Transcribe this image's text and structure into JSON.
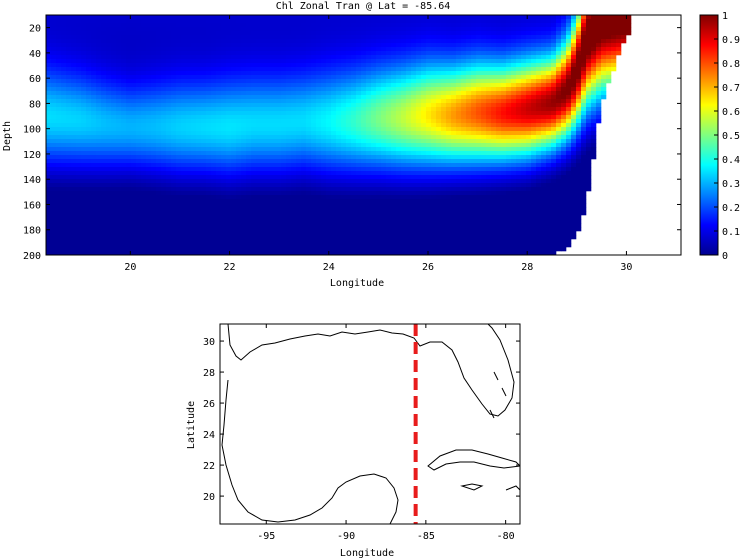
{
  "chart_data": [
    {
      "type": "heatmap",
      "title": "Chl Zonal Tran @ Lat = -85.64",
      "xlabel": "Longitude",
      "ylabel": "Depth",
      "xlim": [
        18.3,
        31.1
      ],
      "ylim": [
        200,
        10
      ],
      "xticks": [
        20,
        22,
        24,
        26,
        28,
        30
      ],
      "yticks": [
        20,
        40,
        60,
        80,
        100,
        120,
        140,
        160,
        180,
        200
      ],
      "colorbar": {
        "range": [
          0,
          1
        ],
        "ticks": [
          "0",
          "0.1",
          "0.2",
          "0.3",
          "0.4",
          "0.5",
          "0.6",
          "0.7",
          "0.8",
          "0.9",
          "1"
        ],
        "colormap": "jet"
      },
      "x": [
        18.3,
        19.0,
        19.5,
        20.0,
        20.5,
        21.0,
        21.5,
        22.0,
        22.5,
        23.0,
        23.5,
        24.0,
        24.5,
        25.0,
        25.5,
        26.0,
        26.5,
        27.0,
        27.5,
        28.0,
        28.5,
        28.8,
        29.0,
        29.2,
        29.5,
        30.0
      ],
      "y": [
        10,
        20,
        30,
        40,
        50,
        60,
        70,
        80,
        90,
        100,
        110,
        120,
        130,
        140,
        150,
        160,
        170,
        180,
        190,
        200
      ],
      "profile_peak_depth": [
        92,
        95,
        98,
        100,
        100,
        100,
        100,
        100,
        98,
        98,
        96,
        96,
        95,
        93,
        92,
        90,
        90,
        88,
        88,
        85,
        80,
        70,
        55,
        30,
        15,
        10
      ],
      "profile_peak_value": [
        0.3,
        0.29,
        0.27,
        0.26,
        0.27,
        0.29,
        0.3,
        0.31,
        0.3,
        0.3,
        0.3,
        0.33,
        0.38,
        0.45,
        0.52,
        0.6,
        0.68,
        0.75,
        0.82,
        0.88,
        0.93,
        0.96,
        0.98,
        1.0,
        1.0,
        1.0
      ],
      "profile_width": [
        42,
        40,
        38,
        36,
        38,
        40,
        40,
        42,
        42,
        42,
        42,
        44,
        44,
        44,
        44,
        44,
        42,
        42,
        40,
        40,
        38,
        40,
        45,
        55,
        60,
        60
      ],
      "bottom_depth": [
        200,
        200,
        200,
        200,
        200,
        200,
        200,
        200,
        200,
        200,
        200,
        200,
        200,
        200,
        200,
        200,
        200,
        200,
        200,
        200,
        200,
        195,
        185,
        160,
        80,
        25
      ]
    },
    {
      "type": "map",
      "xlabel": "Longitude",
      "ylabel": "Latitude",
      "xlim": [
        -97.9,
        -79.1
      ],
      "ylim": [
        18.2,
        31.1
      ],
      "xticks": [
        -95,
        -90,
        -85,
        -80
      ],
      "yticks": [
        20,
        22,
        24,
        26,
        28,
        30
      ],
      "transect_longitude": -85.64,
      "transect_color": "#e81c1c"
    }
  ]
}
